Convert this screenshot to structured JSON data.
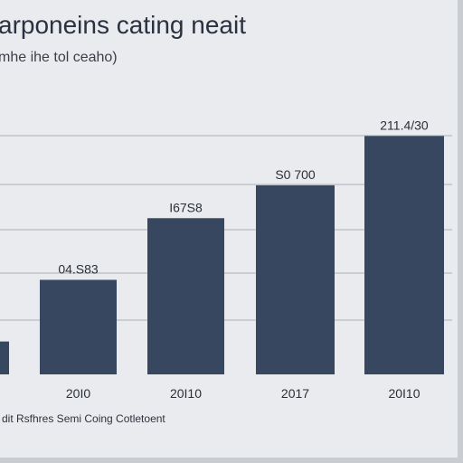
{
  "chart_data": {
    "type": "bar",
    "title": "arponeins cating neait",
    "subtitle": "mhe ihe tol ceaho)",
    "source": "dit Rsfhres Semi Coing Cotletoent",
    "grid": true,
    "categories": [
      "",
      "20I0",
      "20I10",
      "2017",
      "20I10"
    ],
    "value_labels": [
      "",
      "04.S83",
      "I67S8",
      "S0 700",
      "211.4/30"
    ],
    "values": [
      8,
      23,
      38,
      46,
      58
    ],
    "ylim": [
      0,
      66
    ]
  },
  "colors": {
    "bar": "#374760",
    "background": "#e9ebee",
    "grid": "#b9bcc2"
  }
}
